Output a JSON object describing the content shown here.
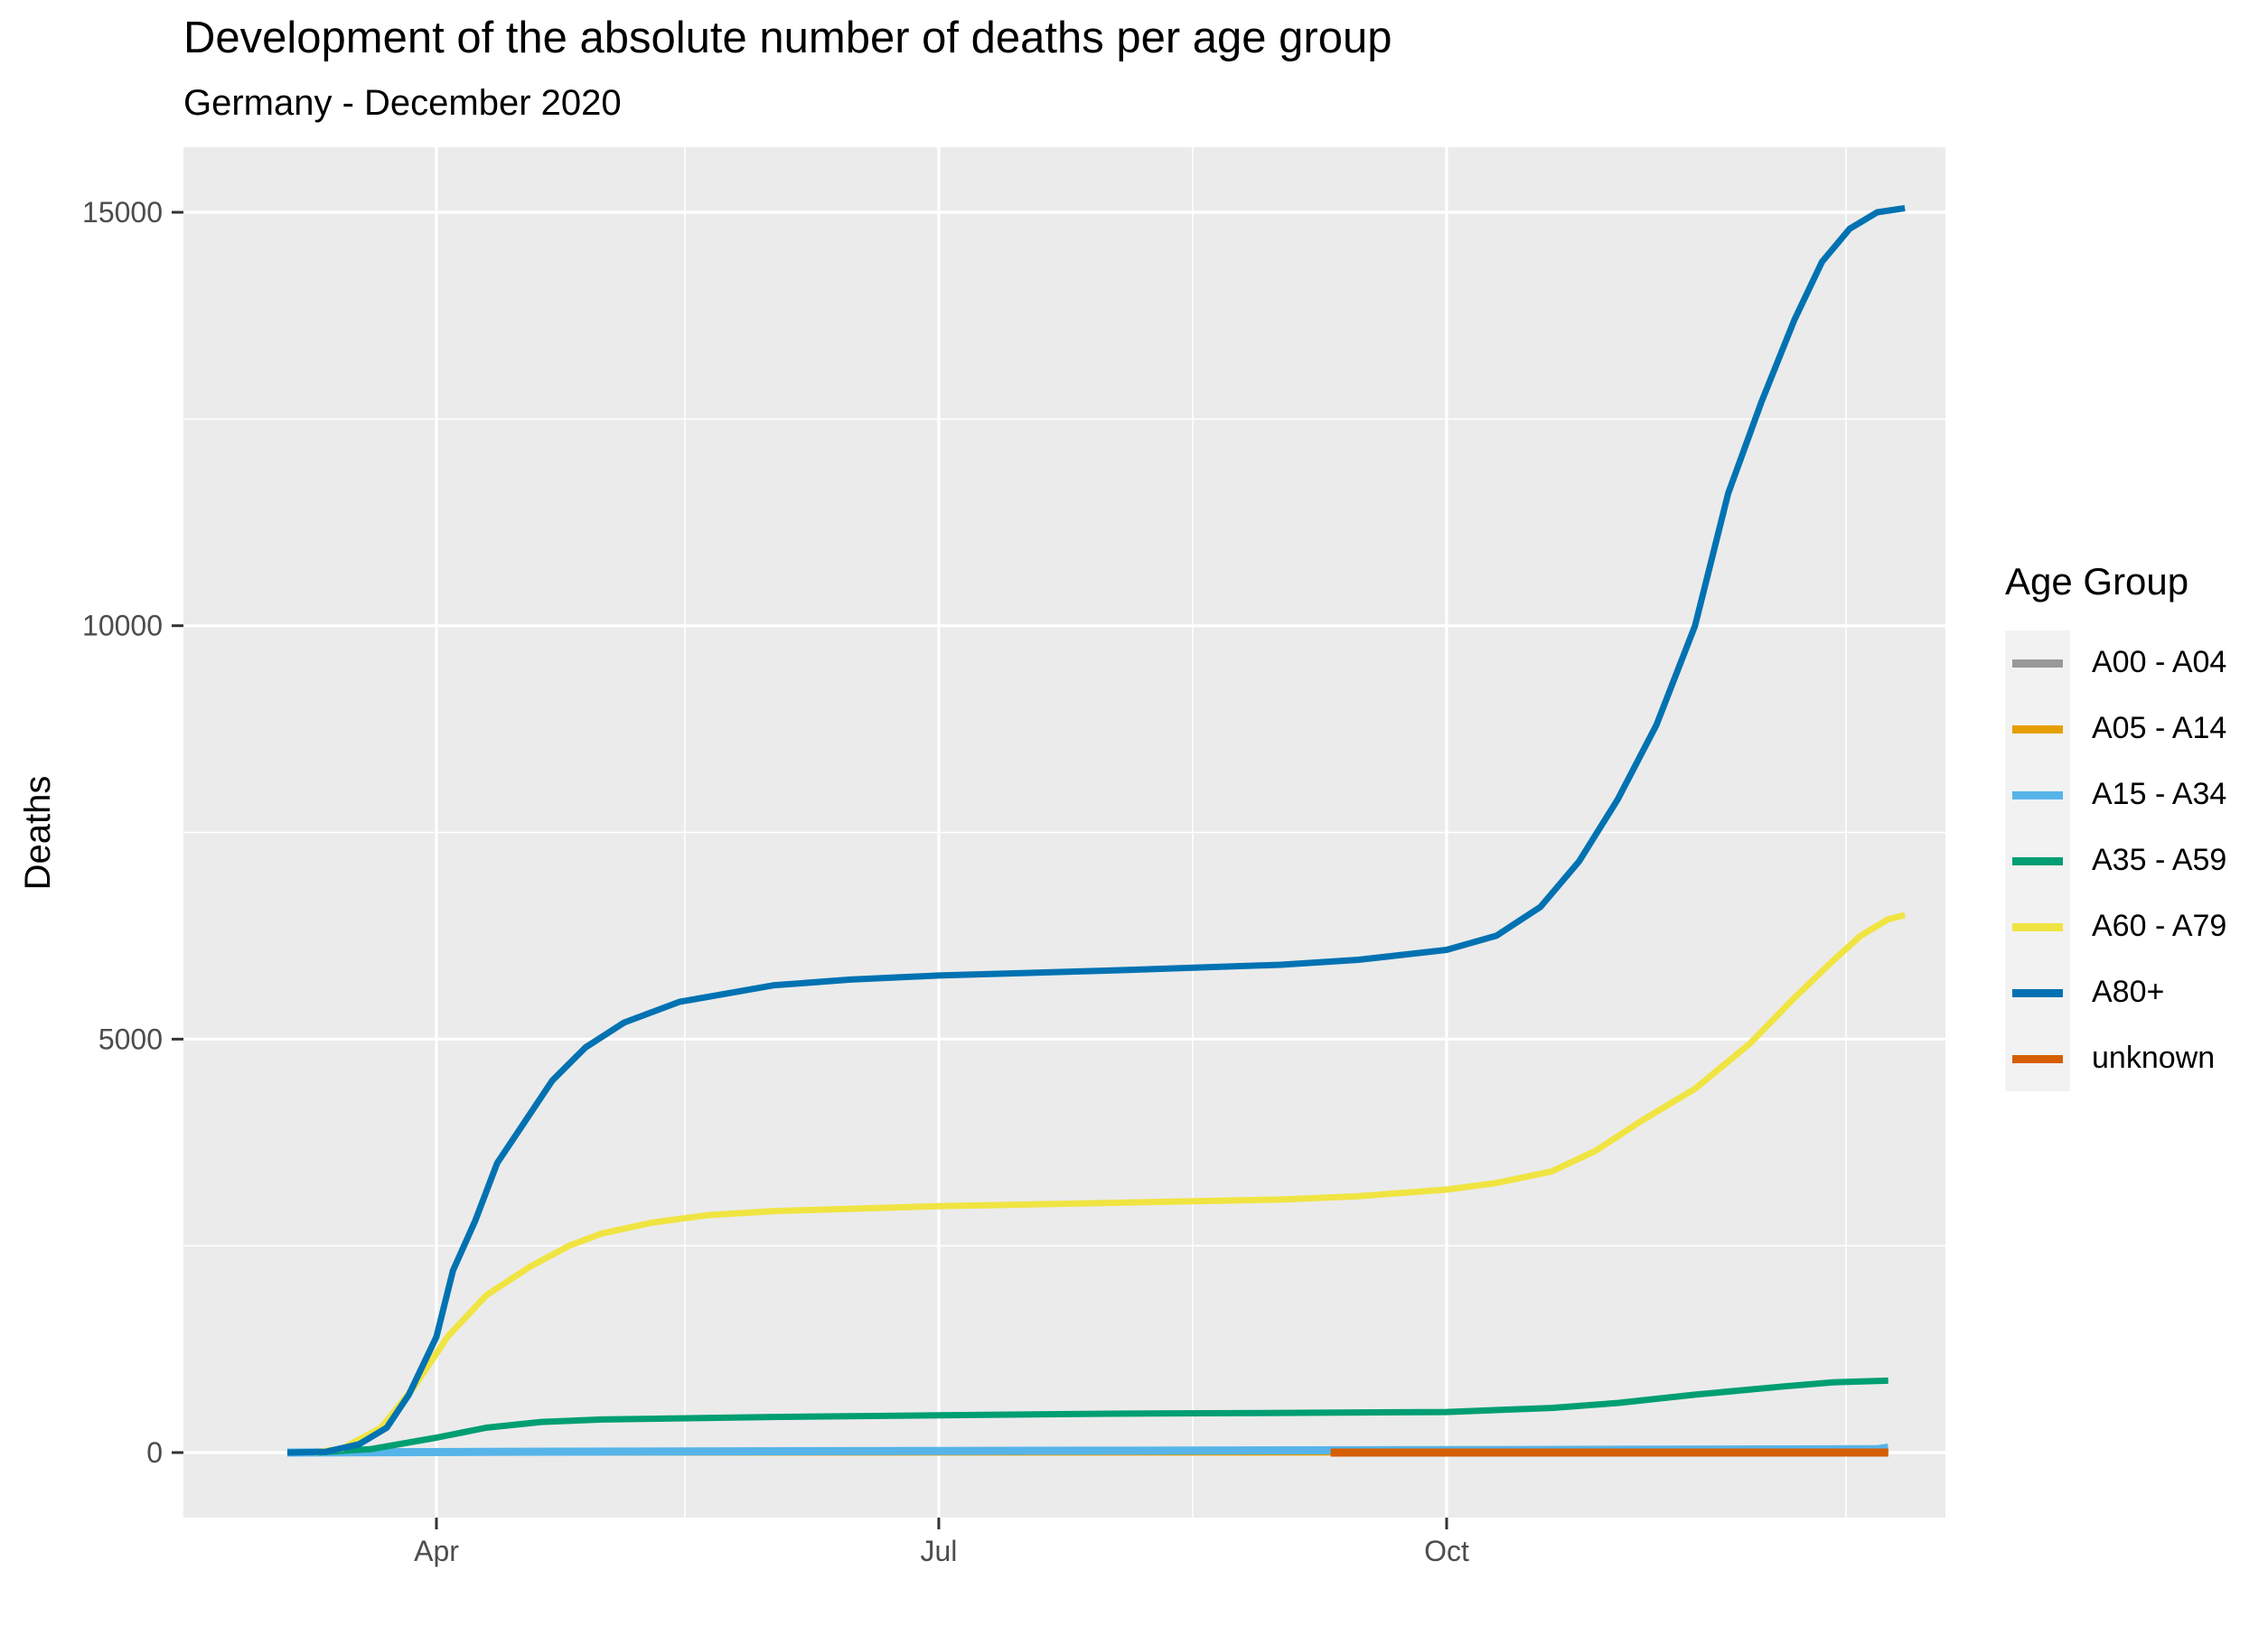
{
  "chart_data": {
    "type": "line",
    "title": "Development of the absolute number of deaths per age group",
    "subtitle": "Germany - December 2020",
    "xlabel": "",
    "ylabel": "Deaths",
    "x_ticks": [
      "Apr",
      "Jul",
      "Oct"
    ],
    "y_ticks": [
      0,
      5000,
      10000,
      15000
    ],
    "grid": true,
    "legend": {
      "title": "Age Group",
      "placement": "right"
    },
    "series": [
      {
        "name": "A00 - A04",
        "color": "#999999",
        "points": [
          [
            "2020-03-05",
            0
          ],
          [
            "2020-12-20",
            5
          ]
        ]
      },
      {
        "name": "A05 - A14",
        "color": "#E69F00",
        "points": [
          [
            "2020-03-05",
            0
          ],
          [
            "2020-12-20",
            3
          ]
        ]
      },
      {
        "name": "A15 - A34",
        "color": "#56B4E9",
        "points": [
          [
            "2020-03-05",
            0
          ],
          [
            "2020-04-15",
            10
          ],
          [
            "2020-07-01",
            20
          ],
          [
            "2020-10-01",
            30
          ],
          [
            "2020-12-18",
            40
          ],
          [
            "2020-12-20",
            60
          ]
        ]
      },
      {
        "name": "A35 - A59",
        "color": "#009E73",
        "points": [
          [
            "2020-03-10",
            0
          ],
          [
            "2020-03-20",
            40
          ],
          [
            "2020-04-01",
            180
          ],
          [
            "2020-04-10",
            300
          ],
          [
            "2020-04-20",
            370
          ],
          [
            "2020-05-01",
            400
          ],
          [
            "2020-06-01",
            430
          ],
          [
            "2020-07-01",
            450
          ],
          [
            "2020-08-01",
            470
          ],
          [
            "2020-09-01",
            480
          ],
          [
            "2020-10-01",
            490
          ],
          [
            "2020-10-20",
            540
          ],
          [
            "2020-11-01",
            600
          ],
          [
            "2020-11-15",
            700
          ],
          [
            "2020-12-01",
            800
          ],
          [
            "2020-12-10",
            850
          ],
          [
            "2020-12-20",
            870
          ]
        ]
      },
      {
        "name": "A60 - A79",
        "color": "#F0E442",
        "points": [
          [
            "2020-03-10",
            0
          ],
          [
            "2020-03-15",
            50
          ],
          [
            "2020-03-22",
            300
          ],
          [
            "2020-03-28",
            800
          ],
          [
            "2020-04-03",
            1400
          ],
          [
            "2020-04-10",
            1900
          ],
          [
            "2020-04-18",
            2250
          ],
          [
            "2020-04-25",
            2500
          ],
          [
            "2020-05-01",
            2650
          ],
          [
            "2020-05-10",
            2780
          ],
          [
            "2020-05-20",
            2870
          ],
          [
            "2020-06-01",
            2920
          ],
          [
            "2020-07-01",
            2980
          ],
          [
            "2020-08-01",
            3020
          ],
          [
            "2020-09-01",
            3060
          ],
          [
            "2020-09-15",
            3100
          ],
          [
            "2020-10-01",
            3180
          ],
          [
            "2020-10-10",
            3260
          ],
          [
            "2020-10-20",
            3400
          ],
          [
            "2020-10-28",
            3650
          ],
          [
            "2020-11-05",
            4000
          ],
          [
            "2020-11-15",
            4400
          ],
          [
            "2020-11-25",
            4950
          ],
          [
            "2020-12-03",
            5500
          ],
          [
            "2020-12-10",
            5950
          ],
          [
            "2020-12-15",
            6250
          ],
          [
            "2020-12-20",
            6450
          ],
          [
            "2020-12-23",
            6500
          ]
        ]
      },
      {
        "name": "A80+",
        "color": "#0072B2",
        "points": [
          [
            "2020-03-05",
            0
          ],
          [
            "2020-03-12",
            10
          ],
          [
            "2020-03-18",
            100
          ],
          [
            "2020-03-23",
            300
          ],
          [
            "2020-03-27",
            700
          ],
          [
            "2020-04-01",
            1400
          ],
          [
            "2020-04-04",
            2200
          ],
          [
            "2020-04-08",
            2800
          ],
          [
            "2020-04-12",
            3500
          ],
          [
            "2020-04-17",
            4000
          ],
          [
            "2020-04-22",
            4500
          ],
          [
            "2020-04-28",
            4900
          ],
          [
            "2020-05-05",
            5200
          ],
          [
            "2020-05-15",
            5450
          ],
          [
            "2020-06-01",
            5650
          ],
          [
            "2020-06-15",
            5720
          ],
          [
            "2020-07-01",
            5770
          ],
          [
            "2020-08-01",
            5830
          ],
          [
            "2020-09-01",
            5900
          ],
          [
            "2020-09-15",
            5960
          ],
          [
            "2020-10-01",
            6080
          ],
          [
            "2020-10-10",
            6250
          ],
          [
            "2020-10-18",
            6600
          ],
          [
            "2020-10-25",
            7150
          ],
          [
            "2020-11-01",
            7900
          ],
          [
            "2020-11-08",
            8800
          ],
          [
            "2020-11-15",
            10000
          ],
          [
            "2020-11-21",
            11600
          ],
          [
            "2020-11-27",
            12700
          ],
          [
            "2020-12-03",
            13700
          ],
          [
            "2020-12-08",
            14400
          ],
          [
            "2020-12-13",
            14800
          ],
          [
            "2020-12-18",
            15000
          ],
          [
            "2020-12-23",
            15050
          ]
        ]
      },
      {
        "name": "unknown",
        "color": "#D55E00",
        "points": [
          [
            "2020-09-10",
            0
          ],
          [
            "2020-12-20",
            0
          ]
        ]
      }
    ]
  }
}
